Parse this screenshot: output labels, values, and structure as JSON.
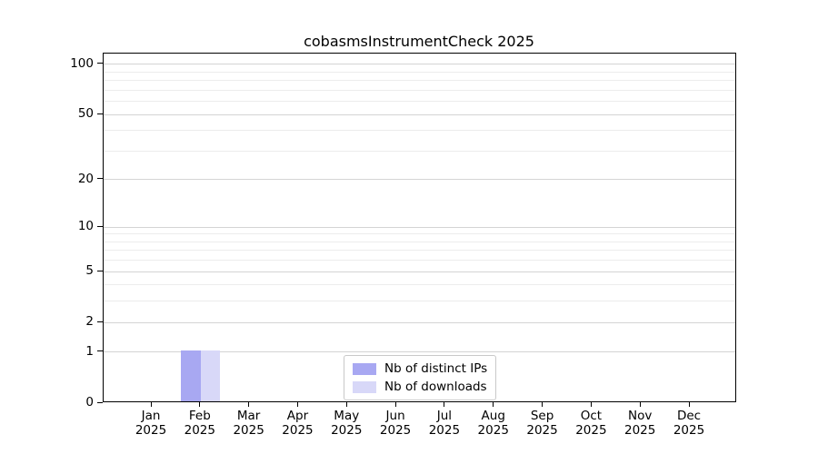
{
  "figure": {
    "background": "#ffffff"
  },
  "chart_data": {
    "type": "bar",
    "title": "cobasmsInstrumentCheck 2025",
    "categories": [
      "Jan",
      "Feb",
      "Mar",
      "Apr",
      "May",
      "Jun",
      "Jul",
      "Aug",
      "Sep",
      "Oct",
      "Nov",
      "Dec"
    ],
    "category_year": "2025",
    "series": [
      {
        "name": "Nb of distinct IPs",
        "color": "#a8a8f2",
        "values": [
          0,
          1,
          0,
          0,
          0,
          0,
          0,
          0,
          0,
          0,
          0,
          0
        ]
      },
      {
        "name": "Nb of downloads",
        "color": "#d8d8f8",
        "values": [
          0,
          1,
          0,
          0,
          0,
          0,
          0,
          0,
          0,
          0,
          0,
          0
        ]
      }
    ],
    "xlabel": "",
    "ylabel": "",
    "y_axis": {
      "scale": "log1p",
      "tick_values": [
        0,
        1,
        2,
        5,
        10,
        20,
        50,
        100
      ],
      "tick_labels": [
        "0",
        "1",
        "2",
        "5",
        "10",
        "20",
        "50",
        "100"
      ],
      "minor_grid_values": [
        3,
        4,
        6,
        7,
        8,
        9,
        30,
        40,
        60,
        70,
        80,
        90
      ],
      "ylim": [
        0,
        116
      ]
    },
    "grid": {
      "show": true,
      "major_color": "#d4d4d4",
      "minor_color": "#ececec"
    },
    "legend": {
      "position": "lower-center"
    },
    "axis_color": "#000000",
    "text_color": "#000000"
  }
}
